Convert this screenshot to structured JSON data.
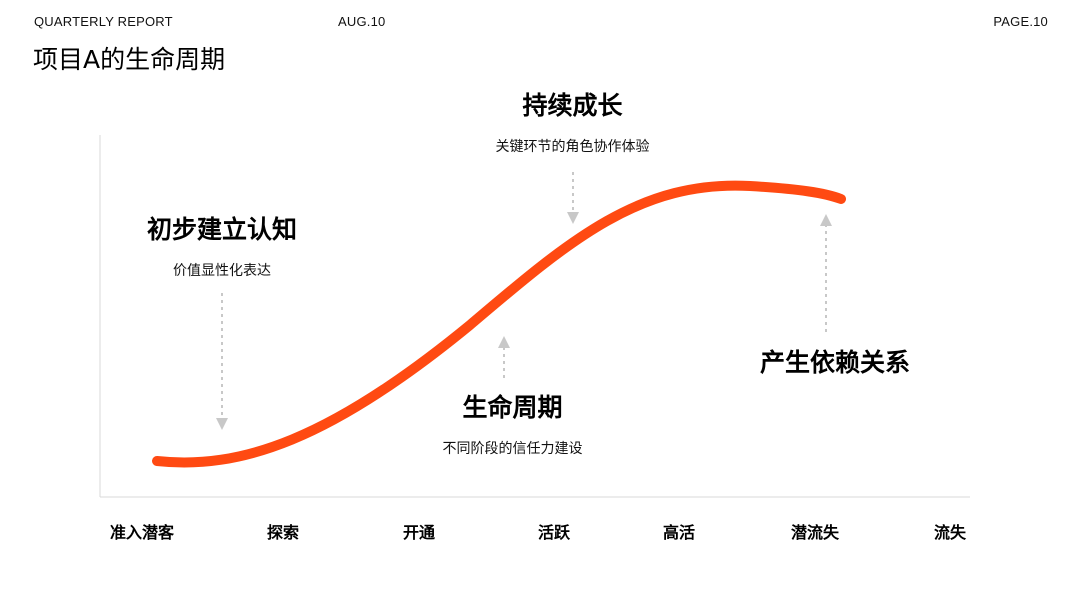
{
  "header": {
    "report": "QUARTERLY REPORT",
    "date": "AUG.10",
    "page": "PAGE.10"
  },
  "title": "项目A的生命周期",
  "stages": {
    "initial": {
      "title": "初步建立认知",
      "desc": "价值显性化表达"
    },
    "growth": {
      "title": "持续成长",
      "desc": "关键环节的角色协作体验"
    },
    "lifecycle": {
      "title": "生命周期",
      "desc": "不同阶段的信任力建设"
    },
    "bond": {
      "title": "产生依赖关系",
      "desc": ""
    }
  },
  "axis": {
    "labels": [
      "准入潜客",
      "探索",
      "开通",
      "活跃",
      "高活",
      "潜流失",
      "流失"
    ]
  },
  "colors": {
    "curve": "#FF4A12",
    "axis": "#d9d9d9",
    "arrow": "#c8c8c8"
  }
}
